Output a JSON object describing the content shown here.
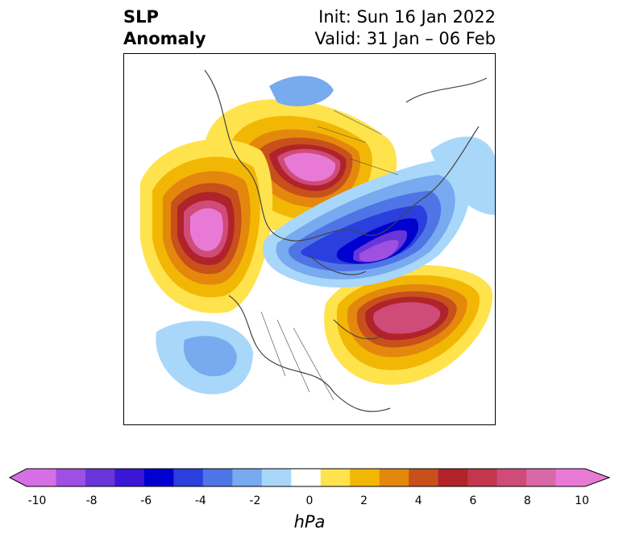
{
  "title": {
    "left_line1": "SLP",
    "left_line2": "Anomaly",
    "right_line1": "Init: Sun 16 Jan 2022",
    "right_line2": "Valid: 31 Jan – 06 Feb"
  },
  "colorbar": {
    "unit": "hPa",
    "ticks": [
      "-10",
      "-8",
      "-6",
      "-4",
      "-2",
      "0",
      "2",
      "4",
      "6",
      "8",
      "10"
    ],
    "tick_values": [
      -10,
      -8,
      -6,
      -4,
      -2,
      0,
      2,
      4,
      6,
      8,
      10
    ],
    "levels": [
      -10,
      -9,
      -8,
      -7,
      -6,
      -5,
      -4,
      -3,
      -2,
      -1,
      1,
      2,
      3,
      4,
      5,
      6,
      7,
      8,
      9,
      10
    ],
    "colors": [
      "#d66fe6",
      "#9e50e2",
      "#6a35d8",
      "#3c16d6",
      "#0000cf",
      "#2a3fde",
      "#4f74e6",
      "#77aaef",
      "#a9d7f9",
      "#ffffff",
      "#ffe34d",
      "#f2b705",
      "#e4880d",
      "#c8501a",
      "#b0232a",
      "#c2374d",
      "#cf4c79",
      "#d968a9",
      "#e87ad6"
    ],
    "extend": "both"
  },
  "map": {
    "projection": "polar-stereographic",
    "region": "Northern Hemisphere",
    "field": "sea level pressure anomaly"
  }
}
